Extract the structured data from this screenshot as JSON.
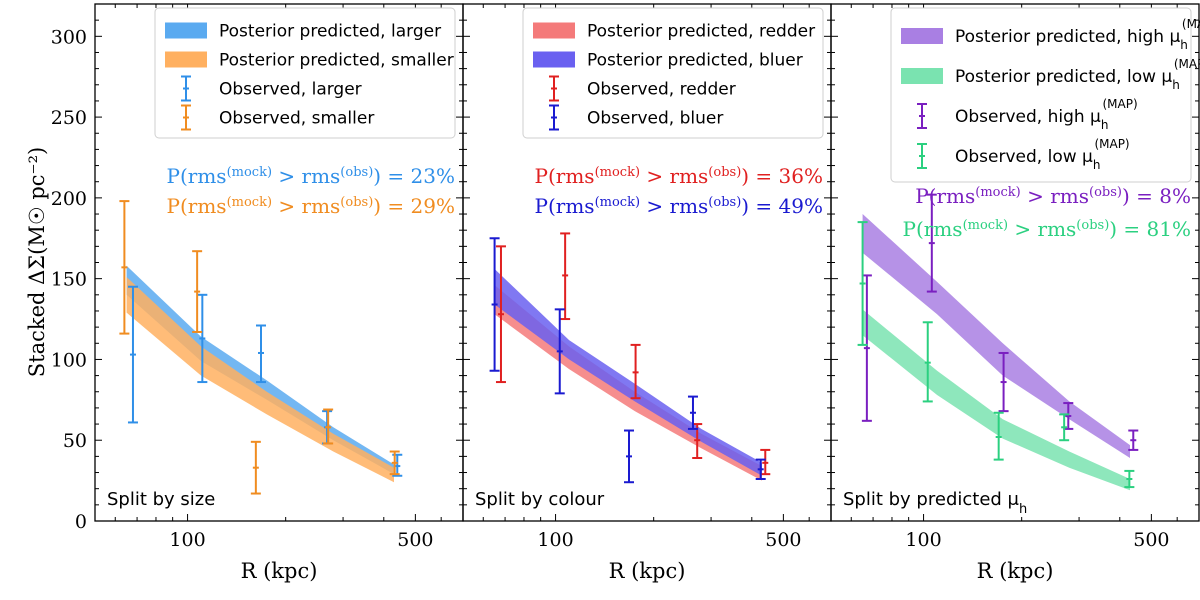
{
  "shared": {
    "ylabel": "Stacked ΔΣ(M☉ pc⁻²)",
    "ylim": [
      0,
      320
    ],
    "yticks": [
      0,
      50,
      100,
      150,
      200,
      250,
      300
    ],
    "xlabel": "R (kpc)",
    "xlim": [
      52,
      700
    ],
    "xscale": "log",
    "xticks": [
      100,
      500
    ],
    "xticklabels": [
      "100",
      "500"
    ]
  },
  "chart_data": [
    {
      "type": "area",
      "panel_label": "Split by size",
      "series": [
        {
          "name": "Posterior predicted, larger",
          "kind": "band",
          "color": "#5aaaf0",
          "x": [
            65,
            110,
            175,
            280,
            430
          ],
          "lower": [
            140,
            99,
            75,
            50,
            29
          ],
          "upper": [
            158,
            114,
            87,
            58,
            35
          ]
        },
        {
          "name": "Posterior predicted, smaller",
          "kind": "band",
          "color": "#ffb060",
          "x": [
            65,
            110,
            175,
            280,
            430
          ],
          "lower": [
            129,
            90,
            66,
            43,
            24
          ],
          "upper": [
            151,
            108,
            80,
            54,
            33
          ]
        },
        {
          "name": "Observed, larger",
          "kind": "errorbar",
          "color": "#2f8fe8",
          "x": [
            68,
            111,
            168,
            268,
            440
          ],
          "y": [
            103,
            113,
            104,
            58,
            34
          ],
          "yerr_low": [
            42,
            27,
            18,
            10,
            6
          ],
          "yerr_high": [
            42,
            27,
            17,
            10,
            7
          ]
        },
        {
          "name": "Observed, smaller",
          "kind": "errorbar",
          "color": "#f08c20",
          "x": [
            64,
            107,
            162,
            270,
            432
          ],
          "y": [
            157,
            142,
            33,
            58,
            36
          ],
          "yerr_low": [
            41,
            25,
            16,
            10,
            7
          ],
          "yerr_high": [
            41,
            25,
            16,
            11,
            7
          ]
        }
      ],
      "annotations": [
        {
          "prefix": "P(rms",
          "sup1": "(mock)",
          "mid": " > rms",
          "sup2": "(obs)",
          "suffix": ") = 23%",
          "color": "#2f8fe8"
        },
        {
          "prefix": "P(rms",
          "sup1": "(mock)",
          "mid": " > rms",
          "sup2": "(obs)",
          "suffix": ") = 29%",
          "color": "#f08c20"
        }
      ]
    },
    {
      "type": "area",
      "panel_label": "Split by colour",
      "series": [
        {
          "name": "Posterior predicted, redder",
          "kind": "band",
          "color": "#f47a7a",
          "x": [
            65,
            110,
            175,
            280,
            430
          ],
          "lower": [
            128,
            94,
            68,
            45,
            25
          ],
          "upper": [
            146,
            108,
            80,
            54,
            34
          ]
        },
        {
          "name": "Posterior predicted, bluer",
          "kind": "band",
          "color": "#6a60f0",
          "x": [
            65,
            110,
            175,
            280,
            430
          ],
          "lower": [
            134,
            100,
            74,
            49,
            28
          ],
          "upper": [
            156,
            112,
            85,
            57,
            36
          ]
        },
        {
          "name": "Observed, redder",
          "kind": "errorbar",
          "color": "#e02020",
          "x": [
            68,
            107,
            176,
            272,
            440
          ],
          "y": [
            128,
            152,
            92,
            50,
            36
          ],
          "yerr_low": [
            42,
            27,
            16,
            11,
            7
          ],
          "yerr_high": [
            42,
            26,
            17,
            10,
            8
          ]
        },
        {
          "name": "Observed, bluer",
          "kind": "errorbar",
          "color": "#1a1ad0",
          "x": [
            65,
            103,
            168,
            264,
            426
          ],
          "y": [
            134,
            105,
            40,
            67,
            32
          ],
          "yerr_low": [
            41,
            26,
            16,
            10,
            6
          ],
          "yerr_high": [
            41,
            26,
            16,
            10,
            6
          ]
        }
      ],
      "annotations": [
        {
          "prefix": "P(rms",
          "sup1": "(mock)",
          "mid": " > rms",
          "sup2": "(obs)",
          "suffix": ") = 36%",
          "color": "#e02020"
        },
        {
          "prefix": "P(rms",
          "sup1": "(mock)",
          "mid": " > rms",
          "sup2": "(obs)",
          "suffix": ") = 49%",
          "color": "#1a1ad0"
        }
      ]
    },
    {
      "type": "area",
      "panel_label": "Split by predicted μ",
      "panel_label_sub": "h",
      "series": [
        {
          "name": "Posterior predicted, high μ",
          "name_sub": "h",
          "name_sup": "(MAP)",
          "kind": "band",
          "color": "#a97fe3",
          "x": [
            65,
            110,
            175,
            280,
            430
          ],
          "lower": [
            166,
            128,
            90,
            63,
            39
          ],
          "upper": [
            190,
            148,
            110,
            74,
            47
          ]
        },
        {
          "name": "Posterior predicted, low μ",
          "name_sub": "h",
          "name_sup": "(MAP)",
          "kind": "band",
          "color": "#7ae3b0",
          "x": [
            65,
            110,
            175,
            280,
            430
          ],
          "lower": [
            115,
            78,
            51,
            33,
            19
          ],
          "upper": [
            131,
            93,
            63,
            43,
            26
          ]
        },
        {
          "name": "Observed, high μ",
          "name_sub": "h",
          "name_sup": "(MAP)",
          "kind": "errorbar",
          "color": "#7a1fc0",
          "x": [
            67,
            106,
            176,
            278,
            440
          ],
          "y": [
            107,
            172,
            86,
            65,
            50
          ],
          "yerr_low": [
            45,
            30,
            18,
            8,
            6
          ],
          "yerr_high": [
            45,
            30,
            18,
            8,
            6
          ]
        },
        {
          "name": "Observed, low μ",
          "name_sub": "h",
          "name_sup": "(MAP)",
          "kind": "errorbar",
          "color": "#2bd080",
          "x": [
            65,
            103,
            170,
            270,
            428
          ],
          "y": [
            147,
            98,
            52,
            58,
            26
          ],
          "yerr_low": [
            38,
            24,
            14,
            8,
            5
          ],
          "yerr_high": [
            38,
            25,
            15,
            8,
            5
          ]
        }
      ],
      "annotations": [
        {
          "prefix": "P(rms",
          "sup1": "(mock)",
          "mid": " > rms",
          "sup2": "(obs)",
          "suffix": ") = 8%",
          "color": "#7a1fc0"
        },
        {
          "prefix": "P(rms",
          "sup1": "(mock)",
          "mid": " > rms",
          "sup2": "(obs)",
          "suffix": ") = 81%",
          "color": "#2bd080"
        }
      ]
    }
  ]
}
